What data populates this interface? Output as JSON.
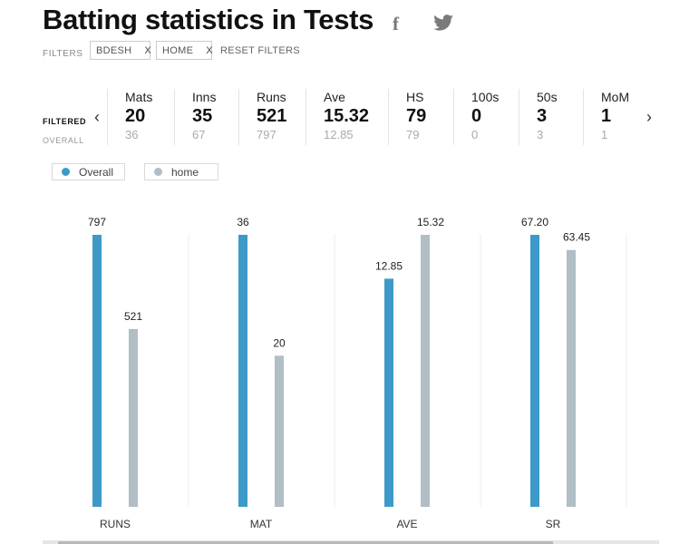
{
  "page": {
    "title": "Batting statistics in Tests",
    "share": {
      "facebook_icon": "facebook-icon",
      "twitter_icon": "twitter-icon"
    }
  },
  "filters": {
    "label": "FILTERS",
    "chips": [
      {
        "label": "BDESH",
        "remove": "X"
      },
      {
        "label": "HOME",
        "remove": "X"
      }
    ],
    "reset_label": "RESET FILTERS"
  },
  "summary": {
    "filtered_label": "FILTERED",
    "overall_label": "OVERALL",
    "prev": "‹",
    "next": "›",
    "stats": [
      {
        "label": "Mats",
        "filtered": "20",
        "overall": "36"
      },
      {
        "label": "Inns",
        "filtered": "35",
        "overall": "67"
      },
      {
        "label": "Runs",
        "filtered": "521",
        "overall": "797"
      },
      {
        "label": "Ave",
        "filtered": "15.32",
        "overall": "12.85"
      },
      {
        "label": "HS",
        "filtered": "79",
        "overall": "79"
      },
      {
        "label": "100s",
        "filtered": "0",
        "overall": "0"
      },
      {
        "label": "50s",
        "filtered": "3",
        "overall": "3"
      },
      {
        "label": "MoM",
        "filtered": "1",
        "overall": "1"
      }
    ]
  },
  "legend": [
    {
      "label": "Overall",
      "color": "#3d9ac8"
    },
    {
      "label": "home",
      "color": "#b0bec5"
    }
  ],
  "chart_data": {
    "type": "bar",
    "categories": [
      "RUNS",
      "MAT",
      "AVE",
      "SR"
    ],
    "series": [
      {
        "name": "Overall",
        "color": "#3d9ac8",
        "values": [
          797,
          36,
          12.85,
          67.2
        ],
        "labels": [
          "797",
          "36",
          "12.85",
          "67.20"
        ]
      },
      {
        "name": "home",
        "color": "#b0bec5",
        "values": [
          521,
          20,
          15.32,
          63.45
        ],
        "labels": [
          "521",
          "20",
          "15.32",
          "63.45"
        ]
      }
    ],
    "scaling": "each category scaled independently to its own maximum",
    "grid": true,
    "title": "",
    "xlabel": "",
    "ylabel": ""
  }
}
